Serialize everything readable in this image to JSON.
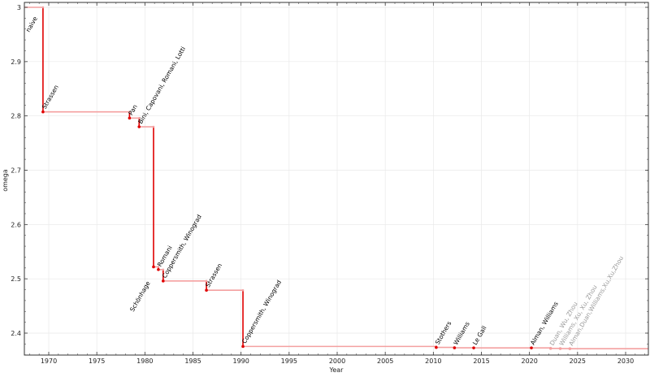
{
  "chart_data": {
    "type": "line",
    "step": true,
    "title": "",
    "xlabel": "Year",
    "ylabel": "omega",
    "xlim": [
      1967.5,
      2032.3
    ],
    "ylim": [
      2.36,
      3.008
    ],
    "grid": true,
    "xticks": [
      1970,
      1975,
      1980,
      1985,
      1990,
      1995,
      2000,
      2005,
      2010,
      2015,
      2020,
      2025,
      2030
    ],
    "yticks": [
      2.4,
      2.5,
      2.6,
      2.7,
      2.8,
      2.9,
      3
    ],
    "colors": {
      "line": "#e00000",
      "line_light": "#f4a0a0",
      "label": "#000000",
      "label_recent": "#999999",
      "grid": "#e8e8e8"
    },
    "points": [
      {
        "label": "naive",
        "x": 1967.5,
        "y": 3.0
      },
      {
        "label": "Strassen",
        "x": 1969.4,
        "y": 2.8074
      },
      {
        "label": "Pan",
        "x": 1978.4,
        "y": 2.796
      },
      {
        "label": "Bini, Capovani, Romani, Lotti",
        "x": 1979.4,
        "y": 2.78
      },
      {
        "label": "Schönhage",
        "x": 1980.9,
        "y": 2.522
      },
      {
        "label": "Romani",
        "x": 1981.4,
        "y": 2.517
      },
      {
        "label": "Coppersmith, Winograd",
        "x": 1981.9,
        "y": 2.496
      },
      {
        "label": "Strassen",
        "x": 1986.4,
        "y": 2.479
      },
      {
        "label": "Coppersmith, Winograd",
        "x": 1990.2,
        "y": 2.3755
      },
      {
        "label": "Stothers",
        "x": 2010.3,
        "y": 2.3737
      },
      {
        "label": "Williams",
        "x": 2012.2,
        "y": 2.3729
      },
      {
        "label": "Le Gall",
        "x": 2014.2,
        "y": 2.37286
      },
      {
        "label": "Alman, Williams",
        "x": 2020.2,
        "y": 2.37286
      },
      {
        "label": "Duan, Wu, Zhou",
        "x": 2022.2,
        "y": 2.37187,
        "recent": true
      },
      {
        "label": "Williams, Xu, Xu, Zhou",
        "x": 2023.2,
        "y": 2.37155,
        "recent": true
      },
      {
        "label": "Alman,Duan,Williams,Xu,Xu,Zhou",
        "x": 2024.2,
        "y": 2.37134,
        "recent": true
      }
    ]
  }
}
